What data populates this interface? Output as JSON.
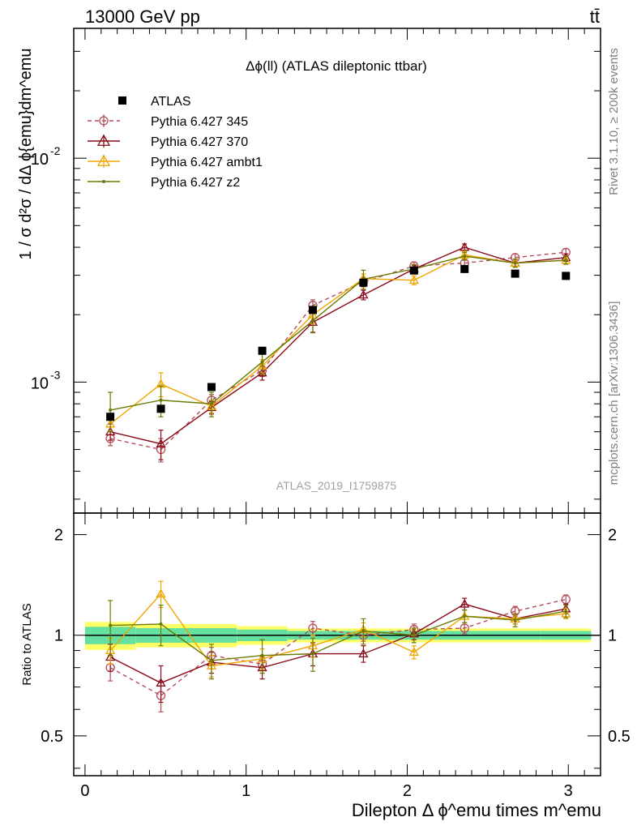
{
  "header": {
    "left_label": "13000 GeV pp",
    "right_label": "tt̄"
  },
  "side_labels": {
    "rivet": "Rivet 3.1.10, ≥ 200k events",
    "source": "mcplots.cern.ch [arXiv:1306.3436]"
  },
  "chart_data": {
    "type": "scatter",
    "title": "Δϕ(ll) (ATLAS dileptonic ttbar)",
    "analysis_id": "ATLAS_2019_I1759875",
    "xlabel": "Dilepton Δ ϕ^emu times m^emu",
    "ylabel": "1 / σ  d²σ / dΔ ϕ{emu}dm^emu",
    "ratio_ylabel": "Ratio to ATLAS",
    "xlim": [
      -0.07,
      3.2
    ],
    "ylim": [
      0.00026,
      0.038
    ],
    "yscale": "log",
    "ratio_ylim": [
      0.38,
      2.32
    ],
    "ratio_yscale": "log",
    "x_ticks": [
      0,
      1,
      2,
      3
    ],
    "y_tick_labels": [
      "10^-3",
      "10^-2"
    ],
    "ratio_ticks": [
      0.5,
      1,
      2
    ],
    "legend_position": "top-left",
    "x": [
      0.157,
      0.471,
      0.785,
      1.1,
      1.414,
      1.728,
      2.042,
      2.356,
      2.67,
      2.985
    ],
    "series": [
      {
        "name": "ATLAS",
        "color": "#000000",
        "marker": "square",
        "line": "none",
        "values": [
          0.0007,
          0.00076,
          0.00095,
          0.00138,
          0.0021,
          0.00278,
          0.00315,
          0.0032,
          0.00305,
          0.00298
        ],
        "ratio": [
          1,
          1,
          1,
          1,
          1,
          1,
          1,
          1,
          1,
          1
        ],
        "band_rel_err": [
          0.06,
          0.05,
          0.05,
          0.04,
          0.03,
          0.03,
          0.03,
          0.03,
          0.03,
          0.03
        ]
      },
      {
        "name": "Pythia 6.427 345",
        "color": "#b34d5a",
        "marker": "circle-open",
        "line": "dashed",
        "values": [
          0.00056,
          0.0005,
          0.00083,
          0.00113,
          0.0022,
          0.0028,
          0.0033,
          0.0034,
          0.0036,
          0.0038
        ],
        "errors": [
          4e-05,
          6e-05,
          5e-05,
          7e-05,
          0.00013,
          0.00014,
          0.00014,
          0.00014,
          0.00014,
          0.00014
        ],
        "ratio": [
          0.8,
          0.66,
          0.87,
          0.82,
          1.05,
          1.0,
          1.04,
          1.05,
          1.18,
          1.28
        ],
        "ratio_err": [
          0.07,
          0.07,
          0.05,
          0.05,
          0.05,
          0.04,
          0.04,
          0.04,
          0.04,
          0.04
        ]
      },
      {
        "name": "Pythia 6.427 370",
        "color": "#8b0a1a",
        "marker": "triangle-open",
        "line": "solid",
        "values": [
          0.0006,
          0.00053,
          0.00077,
          0.0011,
          0.00185,
          0.00245,
          0.0032,
          0.004,
          0.0034,
          0.0036
        ],
        "errors": [
          5e-05,
          8e-05,
          5e-05,
          8e-05,
          0.00018,
          0.00012,
          0.00013,
          0.00014,
          0.00014,
          0.00014
        ],
        "ratio": [
          0.86,
          0.72,
          0.83,
          0.8,
          0.88,
          0.88,
          1.01,
          1.24,
          1.12,
          1.2
        ],
        "ratio_err": [
          0.08,
          0.09,
          0.06,
          0.06,
          0.07,
          0.05,
          0.04,
          0.05,
          0.04,
          0.04
        ]
      },
      {
        "name": "Pythia 6.427 ambt1",
        "color": "#f0a500",
        "marker": "triangle-open",
        "line": "solid",
        "values": [
          0.00065,
          0.00098,
          0.00078,
          0.00118,
          0.002,
          0.0029,
          0.00285,
          0.0037,
          0.0034,
          0.0035
        ],
        "errors": [
          5e-05,
          0.00012,
          5e-05,
          8e-05,
          0.00018,
          0.00014,
          0.00013,
          0.00014,
          0.00014,
          0.00014
        ],
        "ratio": [
          0.9,
          1.33,
          0.81,
          0.85,
          0.93,
          1.04,
          0.89,
          1.14,
          1.12,
          1.16
        ],
        "ratio_err": [
          0.08,
          0.12,
          0.06,
          0.06,
          0.07,
          0.05,
          0.04,
          0.05,
          0.04,
          0.04
        ]
      },
      {
        "name": "Pythia 6.427 z2",
        "color": "#6b7a00",
        "marker": "dot",
        "line": "solid",
        "values": [
          0.00075,
          0.00083,
          0.0008,
          0.00123,
          0.00188,
          0.00288,
          0.0032,
          0.00365,
          0.0034,
          0.0035
        ],
        "errors": [
          0.00015,
          0.00013,
          0.0001,
          0.00015,
          0.00022,
          0.00028,
          0.00015,
          0.00015,
          0.00014,
          0.00014
        ],
        "ratio": [
          1.07,
          1.08,
          0.84,
          0.87,
          0.88,
          1.03,
          1.0,
          1.14,
          1.11,
          1.18
        ],
        "ratio_err": [
          0.2,
          0.15,
          0.1,
          0.1,
          0.1,
          0.09,
          0.05,
          0.05,
          0.05,
          0.05
        ]
      }
    ]
  }
}
